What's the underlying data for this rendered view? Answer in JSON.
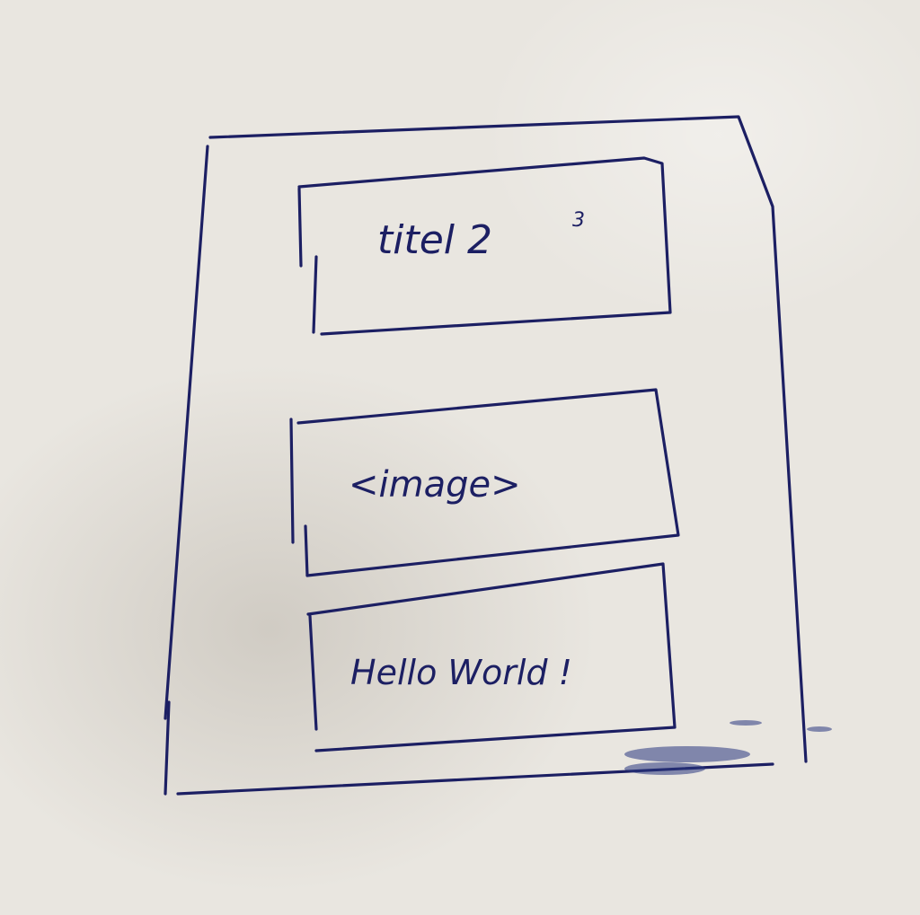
{
  "sketch": {
    "title_box": {
      "text": "titel 2",
      "superscript": "3"
    },
    "image_box": {
      "text": "<image>"
    },
    "hello_box": {
      "text": "Hello World !"
    }
  },
  "colors": {
    "ink": "#1c1f63",
    "paper": "#e9e6e0"
  }
}
